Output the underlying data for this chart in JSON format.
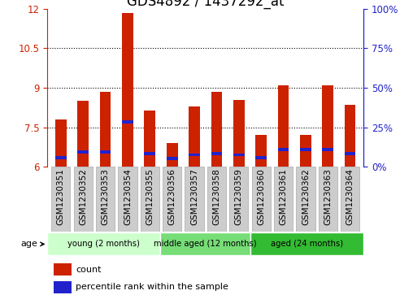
{
  "title": "GDS4892 / 1437292_at",
  "samples": [
    "GSM1230351",
    "GSM1230352",
    "GSM1230353",
    "GSM1230354",
    "GSM1230355",
    "GSM1230356",
    "GSM1230357",
    "GSM1230358",
    "GSM1230359",
    "GSM1230360",
    "GSM1230361",
    "GSM1230362",
    "GSM1230363",
    "GSM1230364"
  ],
  "count_values": [
    7.8,
    8.5,
    8.85,
    11.85,
    8.15,
    6.9,
    8.3,
    8.85,
    8.55,
    7.2,
    9.1,
    7.2,
    9.1,
    8.35
  ],
  "percentile_values": [
    6.35,
    6.55,
    6.55,
    7.7,
    6.5,
    6.3,
    6.45,
    6.5,
    6.45,
    6.35,
    6.65,
    6.65,
    6.65,
    6.5
  ],
  "ymin": 6,
  "ymax": 12,
  "yticks_left": [
    6,
    7.5,
    9,
    10.5,
    12
  ],
  "yticks_right": [
    0,
    25,
    50,
    75,
    100
  ],
  "bar_color": "#cc2200",
  "marker_color": "#2222cc",
  "groups": [
    {
      "label": "young (2 months)",
      "start": 0,
      "end": 5,
      "color": "#ccffcc"
    },
    {
      "label": "middle aged (12 months)",
      "start": 5,
      "end": 9,
      "color": "#77dd77"
    },
    {
      "label": "aged (24 months)",
      "start": 9,
      "end": 14,
      "color": "#33bb33"
    }
  ],
  "age_label": "age",
  "legend_count": "count",
  "legend_percentile": "percentile rank within the sample",
  "title_fontsize": 12,
  "tick_fontsize": 8.5,
  "label_fontsize": 7.5,
  "bar_width": 0.5,
  "background_color": "#ffffff",
  "axis_color_left": "#cc2200",
  "axis_color_right": "#2222cc",
  "gray_box_color": "#cccccc",
  "gray_box_edge": "#aaaaaa"
}
